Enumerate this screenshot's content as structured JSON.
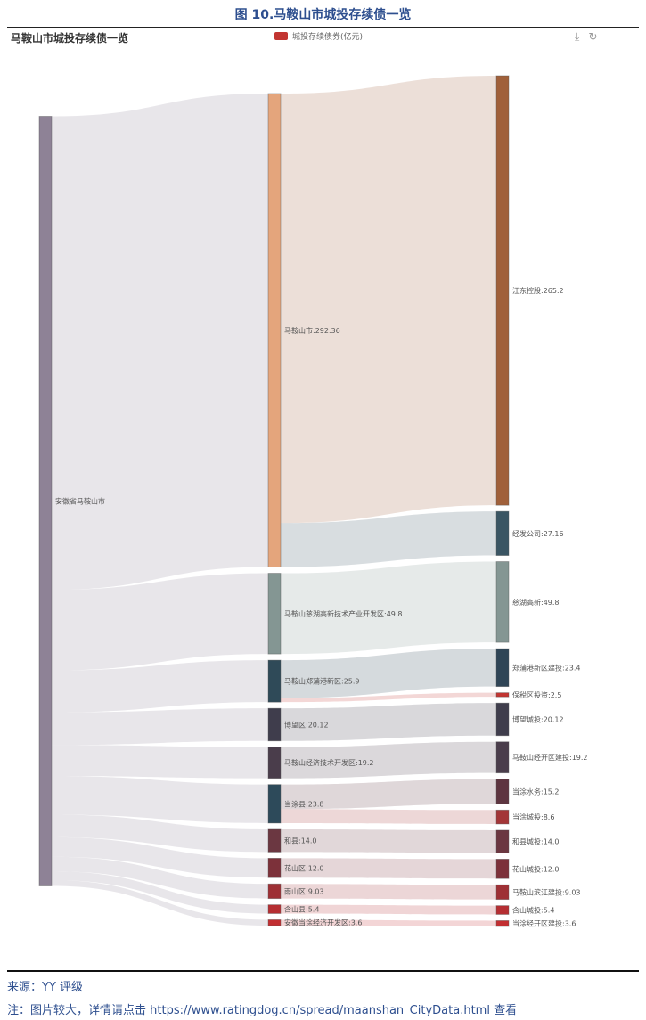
{
  "figure_title": "图 10.马鞍山市城投存续债一览",
  "chart_title": "马鞍山市城投存续债一览",
  "legend": {
    "label": "城投存续债券(亿元)",
    "color": "#c23531"
  },
  "toolbox": {
    "download_icon": "download-icon",
    "refresh_icon": "refresh-icon"
  },
  "footer": {
    "source": "来源：YY 评级",
    "note_prefix": "注：图片较大，详情请点击 ",
    "note_link": "https://www.ratingdog.cn/spread/maanshan_CityData.html",
    "note_suffix": " 查看"
  },
  "chart_data": {
    "type": "sankey",
    "title": "马鞍山市城投存续债一览",
    "unit": "亿元",
    "nodes": [
      {
        "id": "安徽省马鞍山市",
        "label": "安徽省马鞍山市",
        "column": 0,
        "color": "#8e8296"
      },
      {
        "id": "马鞍山市",
        "label": "马鞍山市:292.36",
        "column": 1,
        "color": "#e4a57c"
      },
      {
        "id": "马鞍山慈湖高新技术产业开发区",
        "label": "马鞍山慈湖高新技术产业开发区:49.8",
        "column": 1,
        "color": "#849693"
      },
      {
        "id": "马鞍山郑蒲港新区",
        "label": "马鞍山郑蒲港新区:25.9",
        "column": 1,
        "color": "#2f4a58"
      },
      {
        "id": "博望区",
        "label": "博望区:20.12",
        "column": 1,
        "color": "#3f3d4c"
      },
      {
        "id": "马鞍山经济技术开发区",
        "label": "马鞍山经济技术开发区:19.2",
        "column": 1,
        "color": "#4a3d4b"
      },
      {
        "id": "当涂县",
        "label": "当涂县:23.8",
        "column": 1,
        "color": "#2d4a5a"
      },
      {
        "id": "和县",
        "label": "和县:14.0",
        "column": 1,
        "color": "#6b3741"
      },
      {
        "id": "花山区",
        "label": "花山区:12.0",
        "column": 1,
        "color": "#7c313a"
      },
      {
        "id": "雨山区",
        "label": "雨山区:9.03",
        "column": 1,
        "color": "#9e3035"
      },
      {
        "id": "含山县",
        "label": "含山县:5.4",
        "column": 1,
        "color": "#b52e32"
      },
      {
        "id": "安徽当涂经济开发区",
        "label": "安徽当涂经济开发区:3.6",
        "column": 1,
        "color": "#c22e31"
      },
      {
        "id": "江东控股",
        "label": "江东控股:265.2",
        "column": 2,
        "color": "#a0603a"
      },
      {
        "id": "经发公司",
        "label": "经发公司:27.16",
        "column": 2,
        "color": "#3a5563"
      },
      {
        "id": "慈湖高新",
        "label": "慈湖高新:49.8",
        "column": 2,
        "color": "#849693"
      },
      {
        "id": "郑蒲港新区建投",
        "label": "郑蒲港新区建投:23.4",
        "column": 2,
        "color": "#2f4556"
      },
      {
        "id": "保税区投资",
        "label": "保税区投资:2.5",
        "column": 2,
        "color": "#c23531"
      },
      {
        "id": "博望城投",
        "label": "博望城投:20.12",
        "column": 2,
        "color": "#3f3d4c"
      },
      {
        "id": "马鞍山经开区建投",
        "label": "马鞍山经开区建投:19.2",
        "column": 2,
        "color": "#4a3d4b"
      },
      {
        "id": "当涂水务",
        "label": "当涂水务:15.2",
        "column": 2,
        "color": "#5e3540"
      },
      {
        "id": "当涂城投",
        "label": "当涂城投:8.6",
        "column": 2,
        "color": "#a33537"
      },
      {
        "id": "和县城投",
        "label": "和县城投:14.0",
        "column": 2,
        "color": "#6b3741"
      },
      {
        "id": "花山城投",
        "label": "花山城投:12.0",
        "column": 2,
        "color": "#7c313a"
      },
      {
        "id": "马鞍山滨江建投",
        "label": "马鞍山滨江建投:9.03",
        "column": 2,
        "color": "#9e3035"
      },
      {
        "id": "含山城投",
        "label": "含山城投:5.4",
        "column": 2,
        "color": "#b52e32"
      },
      {
        "id": "当涂经开区建投",
        "label": "当涂经开区建投:3.6",
        "column": 2,
        "color": "#c22e31"
      }
    ],
    "links": [
      {
        "source": "安徽省马鞍山市",
        "target": "马鞍山市",
        "value": 292.36
      },
      {
        "source": "安徽省马鞍山市",
        "target": "马鞍山慈湖高新技术产业开发区",
        "value": 49.8
      },
      {
        "source": "安徽省马鞍山市",
        "target": "马鞍山郑蒲港新区",
        "value": 25.9
      },
      {
        "source": "安徽省马鞍山市",
        "target": "博望区",
        "value": 20.12
      },
      {
        "source": "安徽省马鞍山市",
        "target": "马鞍山经济技术开发区",
        "value": 19.2
      },
      {
        "source": "安徽省马鞍山市",
        "target": "当涂县",
        "value": 23.8
      },
      {
        "source": "安徽省马鞍山市",
        "target": "和县",
        "value": 14.0
      },
      {
        "source": "安徽省马鞍山市",
        "target": "花山区",
        "value": 12.0
      },
      {
        "source": "安徽省马鞍山市",
        "target": "雨山区",
        "value": 9.03
      },
      {
        "source": "安徽省马鞍山市",
        "target": "含山县",
        "value": 5.4
      },
      {
        "source": "安徽省马鞍山市",
        "target": "安徽当涂经济开发区",
        "value": 3.6
      },
      {
        "source": "马鞍山市",
        "target": "江东控股",
        "value": 265.2
      },
      {
        "source": "马鞍山市",
        "target": "经发公司",
        "value": 27.16
      },
      {
        "source": "马鞍山慈湖高新技术产业开发区",
        "target": "慈湖高新",
        "value": 49.8
      },
      {
        "source": "马鞍山郑蒲港新区",
        "target": "郑蒲港新区建投",
        "value": 23.4
      },
      {
        "source": "马鞍山郑蒲港新区",
        "target": "保税区投资",
        "value": 2.5
      },
      {
        "source": "博望区",
        "target": "博望城投",
        "value": 20.12
      },
      {
        "source": "马鞍山经济技术开发区",
        "target": "马鞍山经开区建投",
        "value": 19.2
      },
      {
        "source": "当涂县",
        "target": "当涂水务",
        "value": 15.2
      },
      {
        "source": "当涂县",
        "target": "当涂城投",
        "value": 8.6
      },
      {
        "source": "和县",
        "target": "和县城投",
        "value": 14.0
      },
      {
        "source": "花山区",
        "target": "花山城投",
        "value": 12.0
      },
      {
        "source": "雨山区",
        "target": "马鞍山滨江建投",
        "value": 9.03
      },
      {
        "source": "含山县",
        "target": "含山城投",
        "value": 5.4
      },
      {
        "source": "安徽当涂经济开发区",
        "target": "当涂经开区建投",
        "value": 3.6
      }
    ]
  }
}
